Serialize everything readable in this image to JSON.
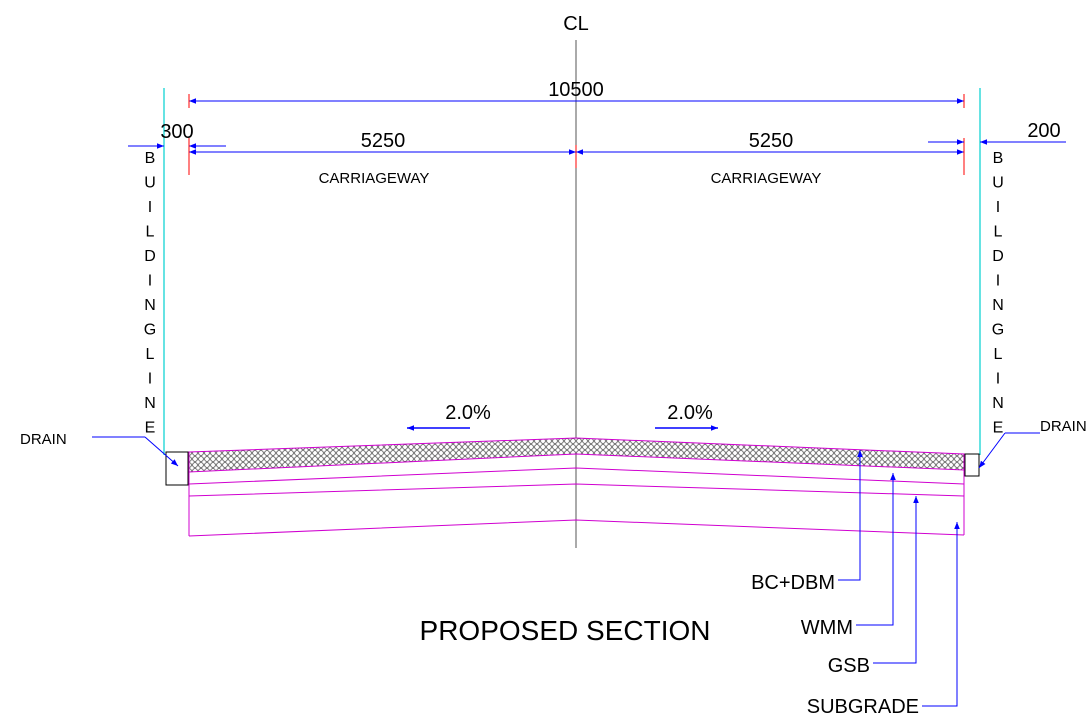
{
  "labels": {
    "centerline": "CL",
    "total_width": "10500",
    "left_offset": "300",
    "right_offset": "200",
    "left_half_width": "5250",
    "right_half_width": "5250",
    "left_carriageway": "CARRIAGEWAY",
    "right_carriageway": "CARRIAGEWAY",
    "left_slope": "2.0%",
    "right_slope": "2.0%",
    "building_line_letters": [
      "B",
      "U",
      "I",
      "L",
      "D",
      "I",
      "N",
      "G",
      "L",
      "I",
      "N",
      "E"
    ],
    "left_drain": "DRAIN",
    "right_drain": "DRAIN",
    "layer_bc_dbm": "BC+DBM",
    "layer_wmm": "WMM",
    "layer_gsb": "GSB",
    "layer_subgrade": "SUBGRADE",
    "section_title": "PROPOSED SECTION"
  },
  "colors": {
    "dimension": "#0000ff",
    "tick": "#ff0000",
    "building_line": "#00d0d0",
    "pavement": "#d000d0",
    "ink": "#000000",
    "centerline": "#555555",
    "hatch": "#777777"
  }
}
